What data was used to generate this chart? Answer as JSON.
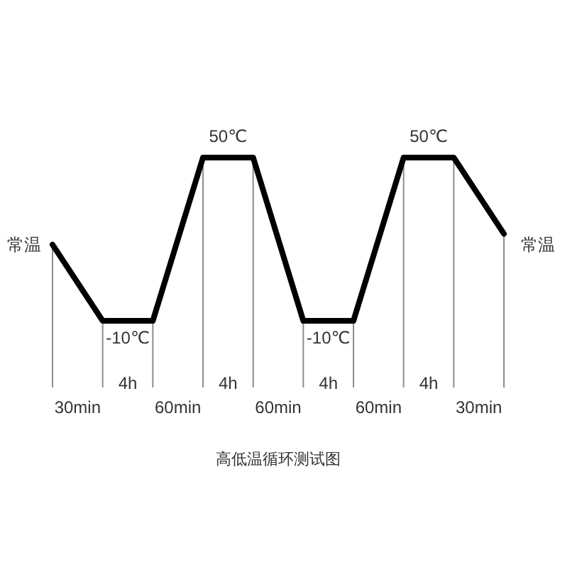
{
  "chart_data": {
    "type": "line",
    "title": "高低温循环测试图",
    "categories": [
      null,
      null,
      null,
      null,
      null,
      null,
      null,
      null,
      null,
      null
    ],
    "values": [
      18,
      -10,
      -10,
      50,
      50,
      -10,
      -10,
      50,
      50,
      22
    ],
    "color": "#000000",
    "line_style": "solid",
    "value_labels": [
      "常温",
      "-10℃",
      null,
      "50℃",
      null,
      "-10℃",
      null,
      "50℃",
      null,
      "常温"
    ],
    "annotations": [
      "30min",
      "4h",
      "60min",
      "4h",
      "60min",
      "4h",
      "60min",
      "4h",
      "30min"
    ],
    "grid": "x",
    "tick_labels": false
  }
}
